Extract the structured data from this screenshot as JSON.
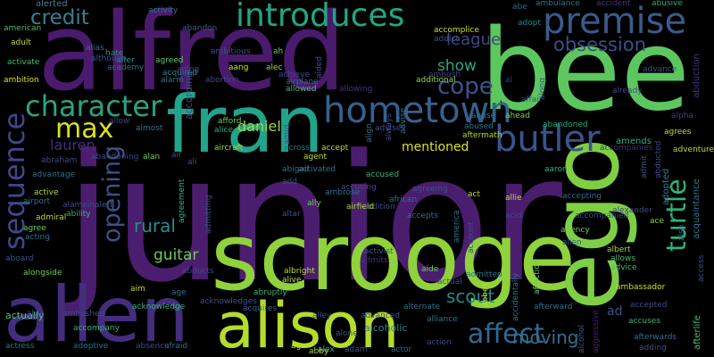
{
  "cloud": {
    "background": "#000000",
    "words": [
      {
        "text": "junior",
        "color": "#4b1d6e"
      },
      {
        "text": "alfred",
        "color": "#4a1a6c"
      },
      {
        "text": "bee",
        "color": "#5cc75e"
      },
      {
        "text": "scrooge",
        "color": "#8fd23b"
      },
      {
        "text": "ego",
        "color": "#7fcf44"
      },
      {
        "text": "fran",
        "color": "#21a48a"
      },
      {
        "text": "allen",
        "color": "#432d7c"
      },
      {
        "text": "alison",
        "color": "#b5dc2c"
      },
      {
        "text": "premise",
        "color": "#3a5a8c"
      },
      {
        "text": "introduces",
        "color": "#21a685"
      },
      {
        "text": "hometown",
        "color": "#35618d"
      },
      {
        "text": "butler",
        "color": "#3a548c"
      },
      {
        "text": "character",
        "color": "#2aa383"
      },
      {
        "text": "max",
        "color": "#d9e21b"
      },
      {
        "text": "sequence",
        "color": "#3f4788"
      },
      {
        "text": "opening",
        "color": "#3b5289"
      },
      {
        "text": "turtle",
        "color": "#2fb37a"
      },
      {
        "text": "affect",
        "color": "#31688e"
      },
      {
        "text": "cope",
        "color": "#3b538b"
      },
      {
        "text": "show",
        "color": "#25a784"
      },
      {
        "text": "credit",
        "color": "#3b7f8e"
      },
      {
        "text": "league",
        "color": "#42467f"
      },
      {
        "text": "obsession",
        "color": "#3b4e89"
      },
      {
        "text": "rural",
        "color": "#2a8c8c"
      },
      {
        "text": "guitar",
        "color": "#6dcb58"
      },
      {
        "text": "moving",
        "color": "#31708e"
      },
      {
        "text": "scout",
        "color": "#238a8d"
      },
      {
        "text": "mentioned",
        "color": "#dde318"
      },
      {
        "text": "daniel",
        "color": "#a0d83e"
      },
      {
        "text": "lauren",
        "color": "#452e7a"
      },
      {
        "text": "according",
        "color": "#3d4f89"
      },
      {
        "text": "actually",
        "color": "#4ec36b"
      },
      {
        "text": "alcoholic",
        "color": "#3a7d8e"
      },
      {
        "text": "amends",
        "color": "#29af7f"
      },
      {
        "text": "abandon",
        "color": "#3d5a8c"
      },
      {
        "text": "advise",
        "color": "#2c7c8e"
      },
      {
        "text": "adopted",
        "color": "#2c7e8e"
      },
      {
        "text": "afterlife",
        "color": "#45bf70"
      },
      {
        "text": "alerted",
        "color": "#3f7e8a"
      },
      {
        "text": "american",
        "color": "#58b871"
      },
      {
        "text": "adult",
        "color": "#bfe02e"
      },
      {
        "text": "activate",
        "color": "#3fbc73"
      },
      {
        "text": "ambition",
        "color": "#dce21a"
      },
      {
        "text": "hate",
        "color": "#3c8c8a"
      },
      {
        "text": "alter",
        "color": "#21918c"
      },
      {
        "text": "academy",
        "color": "#2c6d8e"
      },
      {
        "text": "agreed",
        "color": "#5ec962"
      },
      {
        "text": "acquired",
        "color": "#25858e"
      },
      {
        "text": "aang",
        "color": "#cfe11c"
      },
      {
        "text": "alec",
        "color": "#9bd93c"
      },
      {
        "text": "ah",
        "color": "#5dc963"
      },
      {
        "text": "aided",
        "color": "#3b518b"
      },
      {
        "text": "alarm",
        "color": "#2a768e"
      },
      {
        "text": "airplane",
        "color": "#2e6f8e"
      },
      {
        "text": "allowed",
        "color": "#40bd72"
      },
      {
        "text": "allowing",
        "color": "#45337d"
      },
      {
        "text": "ambush",
        "color": "#433e85"
      },
      {
        "text": "addict",
        "color": "#3b528b"
      },
      {
        "text": "additional",
        "color": "#95d840"
      },
      {
        "text": "accomplice",
        "color": "#cde11d"
      },
      {
        "text": "adopt",
        "color": "#23898e"
      },
      {
        "text": "affair",
        "color": "#3b528b"
      },
      {
        "text": "ambulance",
        "color": "#2a788e"
      },
      {
        "text": "accident",
        "color": "#4a3182"
      },
      {
        "text": "abusive",
        "color": "#26ad81"
      },
      {
        "text": "advance",
        "color": "#3a538b"
      },
      {
        "text": "abduction",
        "color": "#46327e"
      },
      {
        "text": "acquaintance",
        "color": "#2c728e"
      },
      {
        "text": "adventure",
        "color": "#b2dd2d"
      },
      {
        "text": "alpha",
        "color": "#443a83"
      },
      {
        "text": "already",
        "color": "#3f4889"
      },
      {
        "text": "agrees",
        "color": "#bde129"
      },
      {
        "text": "accompanies",
        "color": "#472d7b"
      },
      {
        "text": "abandoned",
        "color": "#23a983"
      },
      {
        "text": "abducted",
        "color": "#3e4989"
      },
      {
        "text": "admit",
        "color": "#3a548c"
      },
      {
        "text": "ace",
        "color": "#8bd646"
      },
      {
        "text": "alexander",
        "color": "#404688"
      },
      {
        "text": "also",
        "color": "#2c728e"
      },
      {
        "text": "access",
        "color": "#3b518b"
      },
      {
        "text": "accepting",
        "color": "#2f6c8e"
      },
      {
        "text": "accompanied",
        "color": "#3b518b"
      },
      {
        "text": "agency",
        "color": "#75d054"
      },
      {
        "text": "alien",
        "color": "#3b5c8c"
      },
      {
        "text": "albert",
        "color": "#a3da37"
      },
      {
        "text": "allows",
        "color": "#40bd72"
      },
      {
        "text": "advice",
        "color": "#45bf70"
      },
      {
        "text": "ambassador",
        "color": "#cde11d"
      },
      {
        "text": "accepted",
        "color": "#3e4c8a"
      },
      {
        "text": "accuses",
        "color": "#35b779"
      },
      {
        "text": "afterwards",
        "color": "#2d708e"
      },
      {
        "text": "adding",
        "color": "#3d4e8a"
      },
      {
        "text": "aggressive",
        "color": "#481f70"
      },
      {
        "text": "alcohol",
        "color": "#3b528b"
      },
      {
        "text": "ad",
        "color": "#3b528b"
      },
      {
        "text": "afterward",
        "color": "#2c728e"
      },
      {
        "text": "accidentally",
        "color": "#2a788e"
      },
      {
        "text": "affection",
        "color": "#6ece58"
      },
      {
        "text": "along",
        "color": "#3b518b"
      },
      {
        "text": "abe",
        "color": "#2e6e8e"
      },
      {
        "text": "al",
        "color": "#443983"
      },
      {
        "text": "ahead",
        "color": "#7cd250"
      },
      {
        "text": "abuse",
        "color": "#2c728e"
      },
      {
        "text": "abused",
        "color": "#2a778e"
      },
      {
        "text": "aftermath",
        "color": "#addc30"
      },
      {
        "text": "aaron",
        "color": "#2fb47c"
      },
      {
        "text": "allie",
        "color": "#b4de2c"
      },
      {
        "text": "acid",
        "color": "#3e4c8a"
      },
      {
        "text": "act",
        "color": "#bddf26"
      },
      {
        "text": "actual",
        "color": "#3b528b"
      },
      {
        "text": "america",
        "color": "#2c738e"
      },
      {
        "text": "account",
        "color": "#3e4989"
      },
      {
        "text": "admitted",
        "color": "#2c728e"
      },
      {
        "text": "abbey",
        "color": "#b5de2b"
      },
      {
        "text": "alliance",
        "color": "#2a778e"
      },
      {
        "text": "action",
        "color": "#3f4889"
      },
      {
        "text": "actor",
        "color": "#2d708e"
      },
      {
        "text": "adam",
        "color": "#3b528b"
      },
      {
        "text": "alex",
        "color": "#2fb47c"
      },
      {
        "text": "ago",
        "color": "#b8de29"
      },
      {
        "text": "abby",
        "color": "#a2da37"
      },
      {
        "text": "abruptly",
        "color": "#31b57b"
      },
      {
        "text": "acquires",
        "color": "#35608d"
      },
      {
        "text": "alley",
        "color": "#3b528b"
      },
      {
        "text": "advanced",
        "color": "#3b528b"
      },
      {
        "text": "alternate",
        "color": "#2c738e"
      },
      {
        "text": "alone",
        "color": "#3a548c"
      },
      {
        "text": "alive",
        "color": "#bfe02e"
      },
      {
        "text": "albright",
        "color": "#bde129"
      },
      {
        "text": "activist",
        "color": "#38598c"
      },
      {
        "text": "admits",
        "color": "#46327e"
      },
      {
        "text": "accepts",
        "color": "#2e6e8e"
      },
      {
        "text": "african",
        "color": "#2c738e"
      },
      {
        "text": "agreeing",
        "color": "#3d4e8a"
      },
      {
        "text": "accused",
        "color": "#31b57b"
      },
      {
        "text": "addition",
        "color": "#3e4989"
      },
      {
        "text": "airfield",
        "color": "#a5db36"
      },
      {
        "text": "altar",
        "color": "#3b528b"
      },
      {
        "text": "ally",
        "color": "#75d054"
      },
      {
        "text": "activated",
        "color": "#2c728e"
      },
      {
        "text": "ambrose",
        "color": "#2c738e"
      },
      {
        "text": "accusing",
        "color": "#3e4989"
      },
      {
        "text": "abigail",
        "color": "#2e6f8e"
      },
      {
        "text": "add",
        "color": "#3b528b"
      },
      {
        "text": "agent",
        "color": "#bddf26"
      },
      {
        "text": "accept",
        "color": "#b5de2b"
      },
      {
        "text": "across",
        "color": "#2c738e"
      },
      {
        "text": "aircraft",
        "color": "#a2da37"
      },
      {
        "text": "air",
        "color": "#3b528b"
      },
      {
        "text": "alan",
        "color": "#6ece58"
      },
      {
        "text": "abandoning",
        "color": "#3e4989"
      },
      {
        "text": "ali",
        "color": "#3b528b"
      },
      {
        "text": "agreement",
        "color": "#2fb47c"
      },
      {
        "text": "admitting",
        "color": "#3b528b"
      },
      {
        "text": "abducts",
        "color": "#3e4989"
      },
      {
        "text": "aim",
        "color": "#bddf26"
      },
      {
        "text": "age",
        "color": "#2c738e"
      },
      {
        "text": "acknowledges",
        "color": "#3b528b"
      },
      {
        "text": "acknowledge",
        "color": "#2fb47c"
      },
      {
        "text": "afraid",
        "color": "#2c738e"
      },
      {
        "text": "absence",
        "color": "#3e4989"
      },
      {
        "text": "adoptive",
        "color": "#2c728e"
      },
      {
        "text": "actress",
        "color": "#2c738e"
      },
      {
        "text": "aboard",
        "color": "#3b528b"
      },
      {
        "text": "alongside",
        "color": "#6ece58"
      },
      {
        "text": "ambushed",
        "color": "#3e4989"
      },
      {
        "text": "able",
        "color": "#3b528b"
      },
      {
        "text": "accompany",
        "color": "#2fb47c"
      },
      {
        "text": "admiral",
        "color": "#bddf26"
      },
      {
        "text": "agree",
        "color": "#6ece58"
      },
      {
        "text": "acting",
        "color": "#2c738e"
      },
      {
        "text": "ability",
        "color": "#2fb47c"
      },
      {
        "text": "alamein",
        "color": "#3e4989"
      },
      {
        "text": "alert",
        "color": "#3b528b"
      },
      {
        "text": "airport",
        "color": "#2c738e"
      },
      {
        "text": "active",
        "color": "#b5de2b"
      },
      {
        "text": "advantage",
        "color": "#2c728e"
      },
      {
        "text": "abraham",
        "color": "#3e4989"
      },
      {
        "text": "almost",
        "color": "#2c738e"
      },
      {
        "text": "allow",
        "color": "#3e4989"
      },
      {
        "text": "alice",
        "color": "#2fb47c"
      },
      {
        "text": "afford",
        "color": "#6ece58"
      },
      {
        "text": "amid",
        "color": "#3b528b"
      },
      {
        "text": "abortion",
        "color": "#3e4989"
      },
      {
        "text": "aging",
        "color": "#3e4989"
      },
      {
        "text": "ambitious",
        "color": "#3b528b"
      },
      {
        "text": "although",
        "color": "#3b528b"
      },
      {
        "text": "alias",
        "color": "#2c738e"
      },
      {
        "text": "activity",
        "color": "#2c728e"
      },
      {
        "text": "achieve",
        "color": "#3e4989"
      },
      {
        "text": "advises",
        "color": "#3b528b"
      },
      {
        "text": "aide",
        "color": "#6ece58"
      },
      {
        "text": "align",
        "color": "#2c738e"
      },
      {
        "text": "always",
        "color": "#3e4989"
      }
    ]
  }
}
